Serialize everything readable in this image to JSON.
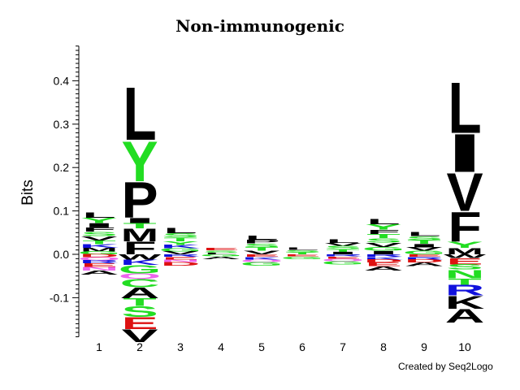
{
  "chart_data": {
    "type": "sequence-logo",
    "title": "Non-immunogenic",
    "ylabel": "Bits",
    "xlabel": "",
    "ylim": [
      -0.19,
      0.48
    ],
    "yticks": [
      "0.4",
      "0.3",
      "0.2",
      "0.1",
      "0.0",
      "-0.1"
    ],
    "ytick_values": [
      0.4,
      0.3,
      0.2,
      0.1,
      0.0,
      -0.1
    ],
    "positions": [
      "1",
      "2",
      "3",
      "4",
      "5",
      "6",
      "7",
      "8",
      "9",
      "10"
    ],
    "colors": {
      "hydrophobic": "#000000",
      "polar": "#22dd22",
      "basic": "#1111dd",
      "acidic": "#dd1111",
      "other": "#ee66ee"
    },
    "columns": [
      {
        "position": "1",
        "positive": [
          {
            "letter": "L",
            "bits": 0.012,
            "color": "#000000"
          },
          {
            "letter": "Y",
            "bits": 0.012,
            "color": "#22dd22"
          },
          {
            "letter": "I",
            "bits": 0.01,
            "color": "#000000"
          },
          {
            "letter": "F",
            "bits": 0.01,
            "color": "#000000"
          },
          {
            "letter": "S",
            "bits": 0.01,
            "color": "#22dd22"
          },
          {
            "letter": "V",
            "bits": 0.01,
            "color": "#000000"
          },
          {
            "letter": "T",
            "bits": 0.009,
            "color": "#22dd22"
          },
          {
            "letter": "K",
            "bits": 0.008,
            "color": "#1111dd"
          },
          {
            "letter": "M",
            "bits": 0.008,
            "color": "#000000"
          },
          {
            "letter": "G",
            "bits": 0.007,
            "color": "#22dd22"
          }
        ],
        "negative": [
          {
            "letter": "D",
            "bits": 0.007,
            "color": "#dd1111"
          },
          {
            "letter": "Q",
            "bits": 0.007,
            "color": "#ee66ee"
          },
          {
            "letter": "R",
            "bits": 0.007,
            "color": "#1111dd"
          },
          {
            "letter": "E",
            "bits": 0.008,
            "color": "#dd1111"
          },
          {
            "letter": "N",
            "bits": 0.008,
            "color": "#ee66ee"
          },
          {
            "letter": "A",
            "bits": 0.01,
            "color": "#000000"
          }
        ]
      },
      {
        "position": "2",
        "positive": [
          {
            "letter": "L",
            "bits": 0.125,
            "color": "#000000"
          },
          {
            "letter": "Y",
            "bits": 0.095,
            "color": "#22dd22"
          },
          {
            "letter": "P",
            "bits": 0.085,
            "color": "#000000"
          },
          {
            "letter": "I",
            "bits": 0.012,
            "color": "#000000"
          },
          {
            "letter": "T",
            "bits": 0.012,
            "color": "#22dd22"
          },
          {
            "letter": "M",
            "bits": 0.03,
            "color": "#000000"
          },
          {
            "letter": "F",
            "bits": 0.03,
            "color": "#000000"
          }
        ],
        "negative": [
          {
            "letter": "W",
            "bits": 0.012,
            "color": "#000000"
          },
          {
            "letter": "K",
            "bits": 0.012,
            "color": "#1111dd"
          },
          {
            "letter": "G",
            "bits": 0.02,
            "color": "#22dd22"
          },
          {
            "letter": "Q",
            "bits": 0.012,
            "color": "#ee66ee"
          },
          {
            "letter": "C",
            "bits": 0.02,
            "color": "#22dd22"
          },
          {
            "letter": "A",
            "bits": 0.025,
            "color": "#000000"
          },
          {
            "letter": "T",
            "bits": 0.018,
            "color": "#22dd22"
          },
          {
            "letter": "S",
            "bits": 0.025,
            "color": "#22dd22"
          },
          {
            "letter": "E",
            "bits": 0.028,
            "color": "#dd1111"
          },
          {
            "letter": "V",
            "bits": 0.03,
            "color": "#000000"
          }
        ]
      },
      {
        "position": "3",
        "positive": [
          {
            "letter": "L",
            "bits": 0.012,
            "color": "#000000"
          },
          {
            "letter": "S",
            "bits": 0.01,
            "color": "#22dd22"
          },
          {
            "letter": "T",
            "bits": 0.009,
            "color": "#22dd22"
          },
          {
            "letter": "Y",
            "bits": 0.008,
            "color": "#22dd22"
          },
          {
            "letter": "K",
            "bits": 0.008,
            "color": "#1111dd"
          },
          {
            "letter": "G",
            "bits": 0.007,
            "color": "#22dd22"
          },
          {
            "letter": "V",
            "bits": 0.007,
            "color": "#000000"
          }
        ],
        "negative": [
          {
            "letter": "R",
            "bits": 0.006,
            "color": "#1111dd"
          },
          {
            "letter": "E",
            "bits": 0.006,
            "color": "#dd1111"
          },
          {
            "letter": "N",
            "bits": 0.006,
            "color": "#ee66ee"
          },
          {
            "letter": "D",
            "bits": 0.008,
            "color": "#dd1111"
          }
        ]
      },
      {
        "position": "4",
        "positive": [
          {
            "letter": "E",
            "bits": 0.006,
            "color": "#dd1111"
          },
          {
            "letter": "S",
            "bits": 0.005,
            "color": "#22dd22"
          },
          {
            "letter": "L",
            "bits": 0.004,
            "color": "#000000"
          }
        ],
        "negative": [
          {
            "letter": "G",
            "bits": 0.005,
            "color": "#22dd22"
          },
          {
            "letter": "A",
            "bits": 0.006,
            "color": "#000000"
          }
        ]
      },
      {
        "position": "5",
        "positive": [
          {
            "letter": "L",
            "bits": 0.01,
            "color": "#000000"
          },
          {
            "letter": "P",
            "bits": 0.009,
            "color": "#000000"
          },
          {
            "letter": "S",
            "bits": 0.009,
            "color": "#22dd22"
          },
          {
            "letter": "T",
            "bits": 0.008,
            "color": "#22dd22"
          },
          {
            "letter": "V",
            "bits": 0.008,
            "color": "#000000"
          }
        ],
        "negative": [
          {
            "letter": "E",
            "bits": 0.006,
            "color": "#dd1111"
          },
          {
            "letter": "K",
            "bits": 0.006,
            "color": "#1111dd"
          },
          {
            "letter": "Q",
            "bits": 0.006,
            "color": "#ee66ee"
          },
          {
            "letter": "G",
            "bits": 0.008,
            "color": "#22dd22"
          }
        ]
      },
      {
        "position": "6",
        "positive": [
          {
            "letter": "L",
            "bits": 0.006,
            "color": "#000000"
          },
          {
            "letter": "S",
            "bits": 0.005,
            "color": "#22dd22"
          },
          {
            "letter": "T",
            "bits": 0.005,
            "color": "#22dd22"
          }
        ],
        "negative": [
          {
            "letter": "E",
            "bits": 0.005,
            "color": "#dd1111"
          },
          {
            "letter": "G",
            "bits": 0.006,
            "color": "#22dd22"
          }
        ]
      },
      {
        "position": "7",
        "positive": [
          {
            "letter": "L",
            "bits": 0.008,
            "color": "#000000"
          },
          {
            "letter": "V",
            "bits": 0.007,
            "color": "#000000"
          },
          {
            "letter": "S",
            "bits": 0.007,
            "color": "#22dd22"
          },
          {
            "letter": "T",
            "bits": 0.006,
            "color": "#22dd22"
          },
          {
            "letter": "I",
            "bits": 0.006,
            "color": "#000000"
          }
        ],
        "negative": [
          {
            "letter": "R",
            "bits": 0.005,
            "color": "#1111dd"
          },
          {
            "letter": "E",
            "bits": 0.005,
            "color": "#dd1111"
          },
          {
            "letter": "Q",
            "bits": 0.006,
            "color": "#ee66ee"
          },
          {
            "letter": "G",
            "bits": 0.007,
            "color": "#22dd22"
          }
        ]
      },
      {
        "position": "8",
        "positive": [
          {
            "letter": "L",
            "bits": 0.012,
            "color": "#000000"
          },
          {
            "letter": "Y",
            "bits": 0.012,
            "color": "#22dd22"
          },
          {
            "letter": "F",
            "bits": 0.01,
            "color": "#000000"
          },
          {
            "letter": "T",
            "bits": 0.01,
            "color": "#22dd22"
          },
          {
            "letter": "S",
            "bits": 0.01,
            "color": "#22dd22"
          },
          {
            "letter": "V",
            "bits": 0.01,
            "color": "#000000"
          },
          {
            "letter": "G",
            "bits": 0.009,
            "color": "#22dd22"
          },
          {
            "letter": "I",
            "bits": 0.008,
            "color": "#000000"
          }
        ],
        "negative": [
          {
            "letter": "R",
            "bits": 0.006,
            "color": "#1111dd"
          },
          {
            "letter": "K",
            "bits": 0.006,
            "color": "#1111dd"
          },
          {
            "letter": "D",
            "bits": 0.007,
            "color": "#dd1111"
          },
          {
            "letter": "E",
            "bits": 0.008,
            "color": "#dd1111"
          },
          {
            "letter": "A",
            "bits": 0.01,
            "color": "#000000"
          }
        ]
      },
      {
        "position": "9",
        "positive": [
          {
            "letter": "L",
            "bits": 0.01,
            "color": "#000000"
          },
          {
            "letter": "S",
            "bits": 0.009,
            "color": "#22dd22"
          },
          {
            "letter": "T",
            "bits": 0.009,
            "color": "#22dd22"
          },
          {
            "letter": "I",
            "bits": 0.008,
            "color": "#000000"
          },
          {
            "letter": "V",
            "bits": 0.008,
            "color": "#000000"
          },
          {
            "letter": "G",
            "bits": 0.008,
            "color": "#22dd22"
          }
        ],
        "negative": [
          {
            "letter": "E",
            "bits": 0.006,
            "color": "#dd1111"
          },
          {
            "letter": "R",
            "bits": 0.006,
            "color": "#1111dd"
          },
          {
            "letter": "D",
            "bits": 0.007,
            "color": "#dd1111"
          },
          {
            "letter": "A",
            "bits": 0.008,
            "color": "#000000"
          }
        ]
      },
      {
        "position": "10",
        "positive": [
          {
            "letter": "L",
            "bits": 0.12,
            "color": "#000000"
          },
          {
            "letter": "I",
            "bits": 0.09,
            "color": "#000000"
          },
          {
            "letter": "V",
            "bits": 0.09,
            "color": "#000000"
          },
          {
            "letter": "F",
            "bits": 0.07,
            "color": "#000000"
          },
          {
            "letter": "Y",
            "bits": 0.015,
            "color": "#22dd22"
          },
          {
            "letter": "M",
            "bits": 0.015,
            "color": "#000000"
          }
        ],
        "negative": [
          {
            "letter": "W",
            "bits": 0.008,
            "color": "#000000"
          },
          {
            "letter": "E",
            "bits": 0.015,
            "color": "#dd1111"
          },
          {
            "letter": "S",
            "bits": 0.012,
            "color": "#22dd22"
          },
          {
            "letter": "N",
            "bits": 0.02,
            "color": "#22dd22"
          },
          {
            "letter": "T",
            "bits": 0.015,
            "color": "#22dd22"
          },
          {
            "letter": "R",
            "bits": 0.025,
            "color": "#1111dd"
          },
          {
            "letter": "K",
            "bits": 0.03,
            "color": "#000000"
          },
          {
            "letter": "A",
            "bits": 0.032,
            "color": "#000000"
          }
        ]
      }
    ]
  },
  "credit": "Created by Seq2Logo"
}
